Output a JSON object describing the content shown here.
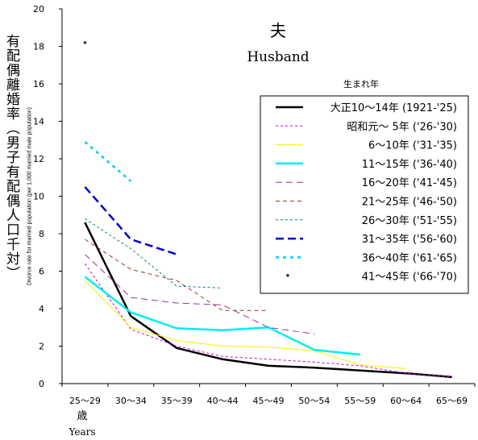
{
  "chart_data": {
    "type": "line",
    "title": "夫",
    "subtitle": "Husband",
    "ylabel_ja": "有配偶離婚率（男子有配偶人口千対）",
    "ylabel_en": "Divorce rate for married population (per 1,000 married male population)",
    "xlabel_ja": "歳",
    "xlabel_en": "Years",
    "legend_title": "生まれ年",
    "legend_placement": "top-right",
    "ylim": [
      0,
      20
    ],
    "yticks": [
      "0",
      "2",
      "4",
      "6",
      "8",
      "10",
      "12",
      "14",
      "16",
      "18",
      "20"
    ],
    "categories": [
      "25〜29",
      "30〜34",
      "35〜39",
      "40〜44",
      "45〜49",
      "50〜54",
      "55〜59",
      "60〜64",
      "65〜69"
    ],
    "grid": false,
    "series": [
      {
        "name": "大正10〜14年 (1921-'25)",
        "color": "#000000",
        "dash": "",
        "width": 2.5,
        "values": [
          8.6,
          3.6,
          1.9,
          1.3,
          0.95,
          0.85,
          0.7,
          0.55,
          0.35
        ]
      },
      {
        "name": "昭和元〜 5年 ('26-'30)",
        "color": "#cc00cc",
        "dash": "3,3",
        "width": 1,
        "values": [
          6.4,
          2.9,
          2.0,
          1.45,
          1.3,
          1.15,
          0.95,
          0.55,
          0.35
        ]
      },
      {
        "name": "6〜10年 ('31-'35)",
        "color": "#ffee00",
        "dash": "",
        "width": 1,
        "values": [
          5.5,
          3.0,
          2.3,
          2.0,
          1.95,
          1.75,
          1.0,
          0.8,
          null
        ]
      },
      {
        "name": "11〜15年 ('36-'40)",
        "color": "#00eeee",
        "dash": "",
        "width": 2.5,
        "values": [
          5.7,
          3.8,
          2.95,
          2.85,
          3.0,
          1.8,
          1.55,
          null,
          null
        ]
      },
      {
        "name": "16〜20年 ('41-'45)",
        "color": "#993399",
        "dash": "8,5",
        "width": 1,
        "values": [
          6.9,
          4.6,
          4.3,
          4.2,
          3.0,
          2.65,
          null,
          null,
          null
        ]
      },
      {
        "name": "21〜25年 ('46-'50)",
        "color": "#993333",
        "dash": "5,4",
        "width": 1,
        "values": [
          7.7,
          6.1,
          5.5,
          3.9,
          3.9,
          null,
          null,
          null,
          null
        ]
      },
      {
        "name": "26〜30年 ('51-'55)",
        "color": "#008080",
        "dash": "3,3",
        "width": 1,
        "values": [
          8.8,
          7.2,
          5.2,
          5.1,
          null,
          null,
          null,
          null,
          null
        ]
      },
      {
        "name": "31〜35年 ('56-'60)",
        "color": "#0000cc",
        "dash": "10,5",
        "width": 2.5,
        "values": [
          10.5,
          7.7,
          6.9,
          null,
          null,
          null,
          null,
          null,
          null
        ]
      },
      {
        "name": "36〜40年 ('61-'65)",
        "color": "#00ccff",
        "dash": "4,5",
        "width": 2.5,
        "values": [
          12.9,
          10.8,
          null,
          null,
          null,
          null,
          null,
          null,
          null
        ]
      },
      {
        "name": "41〜45年 ('66-'70)",
        "color": "#000000",
        "dash": "",
        "width": 1,
        "marker": true,
        "values": [
          18.2,
          null,
          null,
          null,
          null,
          null,
          null,
          null,
          null
        ]
      }
    ]
  }
}
